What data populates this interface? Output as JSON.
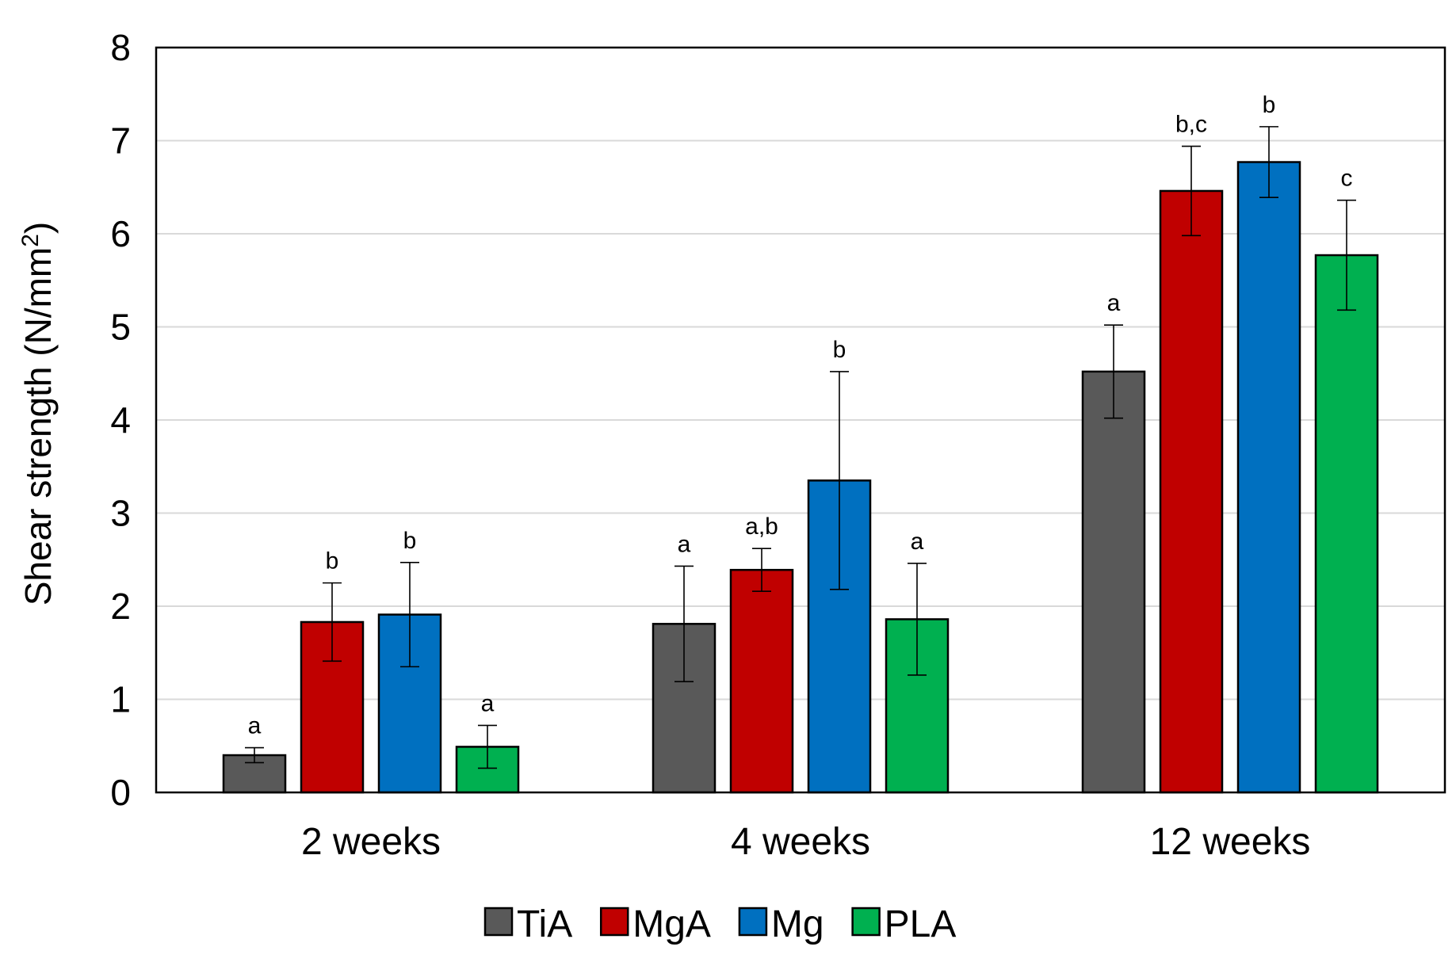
{
  "chart_data": {
    "type": "bar",
    "title": "",
    "xlabel": "",
    "ylabel": "Shear strength (N/mm",
    "ylabel_sup": "2",
    "ylabel_close": ")",
    "ylim": [
      0,
      8
    ],
    "yticks": [
      "0",
      "1",
      "2",
      "3",
      "4",
      "5",
      "6",
      "7",
      "8"
    ],
    "grid": true,
    "legend_position": "bottom",
    "categories": [
      "2 weeks",
      "4 weeks",
      "12 weeks"
    ],
    "series": [
      {
        "name": "TiA",
        "color": "#595959",
        "values": [
          0.4,
          1.81,
          4.52
        ],
        "errors": [
          0.08,
          0.62,
          0.5
        ],
        "sig": [
          "a",
          "a",
          "a"
        ]
      },
      {
        "name": "MgA",
        "color": "#c00000",
        "values": [
          1.83,
          2.39,
          6.46
        ],
        "errors": [
          0.42,
          0.23,
          0.48
        ],
        "sig": [
          "b",
          "a,b",
          "b,c"
        ]
      },
      {
        "name": "Mg",
        "color": "#0070c0",
        "values": [
          1.91,
          3.35,
          6.77
        ],
        "errors": [
          0.56,
          1.17,
          0.38
        ],
        "sig": [
          "b",
          "b",
          "b"
        ]
      },
      {
        "name": "PLA",
        "color": "#00b050",
        "values": [
          0.49,
          1.86,
          5.77
        ],
        "errors": [
          0.23,
          0.6,
          0.59
        ],
        "sig": [
          "a",
          "a",
          "c"
        ]
      }
    ]
  }
}
